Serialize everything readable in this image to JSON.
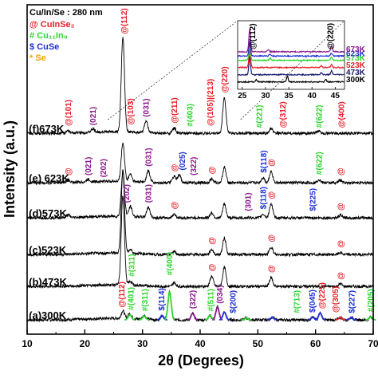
{
  "chart_data": {
    "type": "line",
    "xlabel": "2θ (Degrees)",
    "ylabel": "Intensity (a.u.)",
    "xlim": [
      10,
      70
    ],
    "x_ticks": [
      "10",
      "20",
      "30",
      "40",
      "50",
      "60",
      "70"
    ],
    "grid": false,
    "header": "Cu/In/Se : 280 nm",
    "legend": [
      {
        "text": "@ CuInSe₂",
        "color": "#e8202a"
      },
      {
        "text": "# Cu₁₁In₉",
        "color": "#2ed62e"
      },
      {
        "text": "$ CuSe",
        "color": "#1f2fd6"
      },
      {
        "text": "* Se",
        "color": "#f4a000"
      }
    ],
    "series": [
      {
        "name": "(a)300K",
        "offset": 0,
        "peaks": [
          [
            26.6,
            0.6
          ],
          [
            27.8,
            0.4
          ],
          [
            30.3,
            0.3
          ],
          [
            33.4,
            0.35
          ],
          [
            34.7,
            2.2
          ],
          [
            38.7,
            0.5
          ],
          [
            41.7,
            0.35
          ],
          [
            43.0,
            1.0
          ],
          [
            44.2,
            0.6
          ],
          [
            48.0,
            0.15
          ],
          [
            52.5,
            0.2
          ],
          [
            59.5,
            0.2
          ],
          [
            60.8,
            0.55
          ],
          [
            64.3,
            0.2
          ],
          [
            66.2,
            0.2
          ],
          [
            69.6,
            0.25
          ]
        ],
        "peak_colors": [
          "#e8202a",
          "#2ed62e",
          "#2ed62e",
          "#1f2fd6",
          "#2ed62e",
          "#8b1a8e",
          "#2ed62e",
          "#8b1a8e",
          "#1f2fd6",
          "#2ed62e",
          "#1f2fd6",
          "#1f2fd6",
          "#1f2fd6",
          "#e8202a",
          "#1f2fd6",
          "#2ed62e"
        ]
      },
      {
        "name": "(b)473K",
        "offset": 1,
        "peaks": [
          [
            26.6,
            7.0
          ],
          [
            27.9,
            0.3
          ],
          [
            35.5,
            0.3
          ],
          [
            42.0,
            0.8
          ],
          [
            44.2,
            1.5
          ],
          [
            52.3,
            0.7
          ],
          [
            64.3,
            0.2
          ]
        ]
      },
      {
        "name": "(c)523K",
        "offset": 2,
        "peaks": [
          [
            26.6,
            6.5
          ],
          [
            27.9,
            0.3
          ],
          [
            35.5,
            0.25
          ],
          [
            42.0,
            0.4
          ],
          [
            44.2,
            1.3
          ],
          [
            52.3,
            0.6
          ],
          [
            64.3,
            0.15
          ]
        ]
      },
      {
        "name": "(d)573K",
        "offset": 3,
        "peaks": [
          [
            17.1,
            0.2
          ],
          [
            26.6,
            3.5
          ],
          [
            27.9,
            0.8
          ],
          [
            31.0,
            0.8
          ],
          [
            35.5,
            0.3
          ],
          [
            42.0,
            0.4
          ],
          [
            44.2,
            1.1
          ],
          [
            50.9,
            0.3
          ],
          [
            52.3,
            1.1
          ],
          [
            64.3,
            0.2
          ]
        ]
      },
      {
        "name": "(e) 623K",
        "offset": 4,
        "peaks": [
          [
            17.1,
            0.2
          ],
          [
            20.6,
            0.2
          ],
          [
            26.6,
            3.0
          ],
          [
            27.9,
            0.6
          ],
          [
            31.0,
            0.9
          ],
          [
            35.5,
            0.5
          ],
          [
            36.4,
            0.6
          ],
          [
            42.0,
            0.3
          ],
          [
            44.2,
            1.2
          ],
          [
            50.9,
            0.4
          ],
          [
            52.3,
            0.9
          ],
          [
            60.6,
            0.25
          ],
          [
            64.3,
            0.2
          ]
        ]
      },
      {
        "name": "(f)673K",
        "offset": 5,
        "peaks": [
          [
            17.1,
            0.15
          ],
          [
            21.4,
            0.25
          ],
          [
            26.6,
            7.4
          ],
          [
            30.6,
            0.9
          ],
          [
            35.5,
            0.4
          ],
          [
            44.2,
            2.8
          ],
          [
            52.3,
            0.35
          ],
          [
            60.6,
            0.2
          ]
        ]
      }
    ],
    "series_labels": [
      {
        "text": "(a)300K",
        "x": 10.3,
        "series": 0
      },
      {
        "text": "(b)473K",
        "x": 10.3,
        "series": 1
      },
      {
        "text": "(c)523K",
        "x": 10.3,
        "series": 2
      },
      {
        "text": "(d)573K",
        "x": 10.3,
        "series": 3
      },
      {
        "text": "(e) 623K",
        "x": 10.3,
        "series": 4
      },
      {
        "text": "(f)673K",
        "x": 10.3,
        "series": 5
      }
    ],
    "peak_labels": [
      {
        "text": "@(112)",
        "x": 26.6,
        "series": 5,
        "y": 7.7,
        "color": "#e8202a",
        "size": "large"
      },
      {
        "text": "@(101)",
        "x": 17.1,
        "series": 5,
        "y": 0.5,
        "color": "#e8202a"
      },
      {
        "text": "(021)",
        "x": 21.4,
        "series": 5,
        "y": 0.55,
        "color": "#8b1a8e"
      },
      {
        "text": "@(103)",
        "x": 27.9,
        "series": 5,
        "y": 0.6,
        "color": "#e8202a"
      },
      {
        "text": "(031)",
        "x": 30.6,
        "series": 5,
        "y": 1.2,
        "color": "#8b1a8e"
      },
      {
        "text": "@(211)",
        "x": 35.5,
        "series": 5,
        "y": 0.7,
        "color": "#e8202a"
      },
      {
        "text": "#(403)",
        "x": 38.2,
        "series": 5,
        "y": 0.45,
        "color": "#2ed62e"
      },
      {
        "text": "@(105)|(213)",
        "x": 41.7,
        "series": 5,
        "y": 0.5,
        "color": "#e8202a"
      },
      {
        "text": "@(220)",
        "x": 44.2,
        "series": 5,
        "y": 3.1,
        "color": "#e8202a"
      },
      {
        "text": "@",
        "x": 17.1,
        "series": 4,
        "y": 0.5,
        "color": "#e8202a"
      },
      {
        "text": "(021)",
        "x": 20.6,
        "series": 4,
        "y": 0.5,
        "color": "#8b1a8e"
      },
      {
        "text": "(202)",
        "x": 23.2,
        "series": 4,
        "y": 0.35,
        "color": "#8b1a8e"
      },
      {
        "text": "(031)",
        "x": 31.0,
        "series": 4,
        "y": 1.2,
        "color": "#8b1a8e"
      },
      {
        "text": "@",
        "x": 35.5,
        "series": 4,
        "y": 0.8,
        "color": "#e8202a"
      },
      {
        "text": "(025)",
        "x": 36.9,
        "series": 4,
        "y": 0.9,
        "color": "#1f2fd6"
      },
      {
        "text": "(322)",
        "x": 38.8,
        "series": 4,
        "y": 0.5,
        "color": "#8b1a8e"
      },
      {
        "text": "@",
        "x": 42.0,
        "series": 4,
        "y": 0.6,
        "color": "#e8202a"
      },
      {
        "text": "$(118)",
        "x": 51.0,
        "series": 4,
        "y": 0.7,
        "color": "#1f2fd6"
      },
      {
        "text": "@",
        "x": 52.3,
        "series": 4,
        "y": 1.2,
        "color": "#e8202a"
      },
      {
        "text": "#(622)",
        "x": 60.6,
        "series": 4,
        "y": 0.55,
        "color": "#2ed62e"
      },
      {
        "text": "@",
        "x": 64.3,
        "series": 4,
        "y": 0.5,
        "color": "#e8202a"
      },
      {
        "text": "(202)",
        "x": 27.2,
        "series": 3,
        "y": 1.1,
        "color": "#8b1a8e"
      },
      {
        "text": "(031)",
        "x": 31.0,
        "series": 3,
        "y": 1.1,
        "color": "#8b1a8e"
      },
      {
        "text": "@",
        "x": 35.5,
        "series": 3,
        "y": 0.6,
        "color": "#e8202a"
      },
      {
        "text": "(301)",
        "x": 48.3,
        "series": 3,
        "y": 0.45,
        "color": "#8b1a8e"
      },
      {
        "text": "$(118)",
        "x": 50.9,
        "series": 3,
        "y": 0.6,
        "color": "#1f2fd6"
      },
      {
        "text": "@",
        "x": 52.3,
        "series": 3,
        "y": 1.4,
        "color": "#e8202a"
      },
      {
        "text": "$(225)",
        "x": 59.5,
        "series": 3,
        "y": 0.45,
        "color": "#1f2fd6"
      },
      {
        "text": "@",
        "x": 64.3,
        "series": 3,
        "y": 0.5,
        "color": "#e8202a"
      },
      {
        "text": "@",
        "x": 42.0,
        "series": 2,
        "y": 0.7,
        "color": "#e8202a"
      },
      {
        "text": "@",
        "x": 52.3,
        "series": 2,
        "y": 0.9,
        "color": "#e8202a"
      },
      {
        "text": "@",
        "x": 64.3,
        "series": 2,
        "y": 0.45,
        "color": "#e8202a"
      },
      {
        "text": "#(311)",
        "x": 28.1,
        "series": 1,
        "y": 0.7,
        "color": "#2ed62e"
      },
      {
        "text": "#(400)",
        "x": 34.7,
        "series": 1,
        "y": 0.8,
        "color": "#2ed62e"
      },
      {
        "text": "@",
        "x": 42.0,
        "series": 1,
        "y": 1.1,
        "color": "#e8202a"
      },
      {
        "text": "@",
        "x": 52.3,
        "series": 1,
        "y": 1.0,
        "color": "#e8202a"
      },
      {
        "text": "@",
        "x": 64.3,
        "series": 1,
        "y": 0.45,
        "color": "#e8202a"
      },
      {
        "text": "@(112)",
        "x": 26.4,
        "series": 0,
        "y": 0.9,
        "color": "#e8202a"
      },
      {
        "text": "#(401)",
        "x": 28.0,
        "series": 0,
        "y": 0.7,
        "color": "#2ed62e"
      },
      {
        "text": "#(311)",
        "x": 30.4,
        "series": 0,
        "y": 0.6,
        "color": "#2ed62e"
      },
      {
        "text": "$(114)",
        "x": 33.3,
        "series": 0,
        "y": 0.65,
        "color": "#1f2fd6"
      },
      {
        "text": "(322)",
        "x": 38.7,
        "series": 0,
        "y": 0.8,
        "color": "#8b1a8e"
      },
      {
        "text": "#(511)",
        "x": 41.8,
        "series": 0,
        "y": 0.6,
        "color": "#2ed62e"
      },
      {
        "text": "(034)",
        "x": 43.4,
        "series": 0,
        "y": 1.2,
        "color": "#8b1a8e"
      },
      {
        "text": "$(200)",
        "x": 45.7,
        "series": 0,
        "y": 0.45,
        "color": "#1f2fd6"
      },
      {
        "text": "#(713)",
        "x": 56.7,
        "series": 0,
        "y": 0.45,
        "color": "#2ed62e"
      },
      {
        "text": "$(045)",
        "x": 59.4,
        "series": 0,
        "y": 0.5,
        "color": "#1f2fd6"
      },
      {
        "text": "@(225)",
        "x": 61.1,
        "series": 0,
        "y": 0.8,
        "color": "#e8202a"
      },
      {
        "text": "@(305)",
        "x": 63.4,
        "series": 0,
        "y": 0.5,
        "color": "#e8202a"
      },
      {
        "text": "$(227)",
        "x": 66.3,
        "series": 0,
        "y": 0.45,
        "color": "#1f2fd6"
      },
      {
        "text": "#(205)",
        "x": 69.5,
        "series": 0,
        "y": 0.55,
        "color": "#2ed62e"
      },
      {
        "text": "#(221)",
        "x": 50.2,
        "series": 5,
        "y": 0.35,
        "color": "#2ed62e"
      },
      {
        "text": "@(312)",
        "x": 54.3,
        "series": 5,
        "y": 0.35,
        "color": "#e8202a"
      },
      {
        "text": "#(622)",
        "x": 60.6,
        "series": 5,
        "y": 0.35,
        "color": "#2ed62e"
      },
      {
        "text": "@(400)",
        "x": 64.5,
        "series": 5,
        "y": 0.35,
        "color": "#e8202a"
      }
    ],
    "inset": {
      "xlim": [
        24,
        47
      ],
      "x_ticks": [
        "25",
        "30",
        "35",
        "40",
        "45"
      ],
      "series": [
        {
          "name": "300K",
          "color": "#000000",
          "offset": 0,
          "peaks": [
            [
              28,
              0.3
            ],
            [
              34.7,
              0.8
            ],
            [
              43,
              0.3
            ]
          ]
        },
        {
          "name": "473K",
          "color": "#1a1a6e",
          "offset": 1,
          "peaks": [
            [
              26.6,
              2.5
            ],
            [
              42,
              0.3
            ],
            [
              44.2,
              0.5
            ]
          ]
        },
        {
          "name": "523K",
          "color": "#e8202a",
          "offset": 2,
          "peaks": [
            [
              26.6,
              2.5
            ],
            [
              42,
              0.2
            ],
            [
              44.2,
              0.4
            ]
          ]
        },
        {
          "name": "573K",
          "color": "#2ed62e",
          "offset": 3,
          "peaks": [
            [
              26.6,
              2.2
            ],
            [
              31,
              0.3
            ],
            [
              44.2,
              0.4
            ]
          ]
        },
        {
          "name": "623K",
          "color": "#1f2fd6",
          "offset": 3.6,
          "peaks": [
            [
              26.6,
              2.1
            ],
            [
              31,
              0.3
            ],
            [
              44.2,
              0.4
            ]
          ]
        },
        {
          "name": "673K",
          "color": "#8b1a8e",
          "offset": 4.2,
          "peaks": [
            [
              26.6,
              3.2
            ],
            [
              30.6,
              0.3
            ],
            [
              44.2,
              0.8
            ]
          ]
        }
      ],
      "annotations": [
        {
          "text": "@(112)",
          "x": 27.3,
          "color": "#000000"
        },
        {
          "text": "@(220)",
          "x": 44.0,
          "color": "#000000"
        }
      ]
    }
  }
}
